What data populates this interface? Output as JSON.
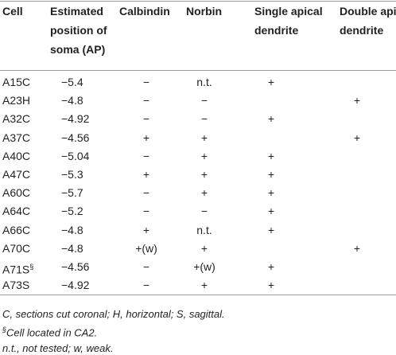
{
  "table": {
    "headers": [
      [
        "Cell"
      ],
      [
        "Estimated",
        "position of",
        "soma (AP)"
      ],
      [
        "Calbindin"
      ],
      [
        "Norbin"
      ],
      [
        "Single apical",
        "dendrite"
      ],
      [
        "Double apical",
        "dendrite"
      ]
    ],
    "rows": [
      [
        "A15C",
        "−5.4",
        "−",
        "n.t.",
        "+",
        null
      ],
      [
        "A23H",
        "−4.8",
        "−",
        "−",
        null,
        "+"
      ],
      [
        "A32C",
        "−4.92",
        "−",
        "−",
        "+",
        null
      ],
      [
        "A37C",
        "−4.56",
        "+",
        "+",
        null,
        "+"
      ],
      [
        "A40C",
        "−5.04",
        "−",
        "+",
        "+",
        null
      ],
      [
        "A47C",
        "−5.3",
        "+",
        "+",
        "+",
        null
      ],
      [
        "A60C",
        "−5.7",
        "−",
        "+",
        "+",
        null
      ],
      [
        "A64C",
        "−5.2",
        "−",
        "−",
        "+",
        null
      ],
      [
        "A66C",
        "−4.8",
        "+",
        "n.t.",
        "+",
        null
      ],
      [
        "A70C",
        "−4.8",
        "+(w)",
        "+",
        null,
        "+"
      ],
      [
        "A71S",
        "−4.56",
        "−",
        "+(w)",
        "+",
        null
      ],
      [
        "A73S",
        "−4.92",
        "−",
        "+",
        "+",
        null
      ]
    ],
    "row_marks": {
      "10": "§"
    }
  },
  "footnotes": [
    {
      "text": "C, sections cut coronal; H, horizontal; S, sagittal."
    },
    {
      "mark": "§",
      "text": "Cell located in CA2."
    },
    {
      "text": "n.t., not tested; w, weak."
    }
  ]
}
